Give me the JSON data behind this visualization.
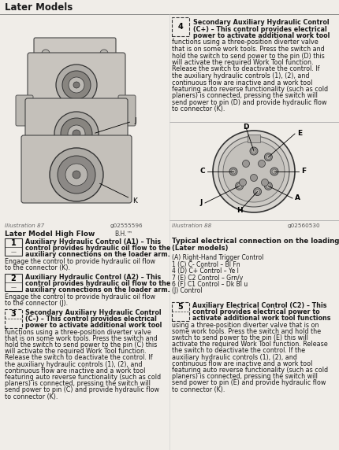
{
  "bg_color": "#f0ede8",
  "text_color": "#1a1a1a",
  "header_title": "Later Models",
  "left_illus_label": "Illustration 87",
  "left_illus_code": "g02555596",
  "left_illus_sub": "Later Model High Flow",
  "right_illus_label": "Illustration 88",
  "right_illus_code": "g02560530",
  "right_illus_sub1": "Typical electrical connection on the loading arm",
  "right_illus_sub2": "(Later models)",
  "legend_lines": [
    "(A) Right-Hand Trigger Control",
    "1 (C) C- Control – Bl Fn",
    "4 (D) C+ Control – Ye l",
    "7 (E) C2 Control – Grn/y",
    "6 (F) C1 Control – Dk Bl u",
    "(J) Control"
  ],
  "item4_bold": [
    "Secondary Auxiliary Hydraulic Control",
    "(C+) – This control provides electrical",
    "power to activate additional work tool"
  ],
  "item4_normal": [
    "functions using a three-position diverter valve",
    "that is on some work tools. Press the switch and",
    "hold the switch to send power to the pin (D) this",
    "will activate the required Work Tool function.",
    "Release the switch to deactivate the control. If",
    "the auxiliary hydraulic controls (1), (2), and",
    "continuous flow are inactive and a work tool",
    "featuring auto reverse functionality (such as cold",
    "planers) is connected, pressing the switch will",
    "send power to pin (D) and provide hydraulic flow",
    "to connector (K)."
  ],
  "item1_bold": [
    "Auxiliary Hydraulic Control (A1) – This",
    "control provides hydraulic oil flow to the",
    "auxiliary connections on the loader arm."
  ],
  "item1_normal": [
    "Engage the control to provide hydraulic oil flow",
    "to the connector (K)."
  ],
  "item2_bold": [
    "Auxiliary Hydraulic Control (A2) – This",
    "control provides hydraulic oil flow to the",
    "auxiliary connections on the loader arm."
  ],
  "item2_normal": [
    "Engage the control to provide hydraulic oil flow",
    "to the connector (J)."
  ],
  "item3_bold": [
    "Secondary Auxiliary Hydraulic Control",
    "(C–) – This control provides electrical",
    "power to activate additional work tool"
  ],
  "item3_normal": [
    "functions using a three-position diverter valve",
    "that is on some work tools. Press the switch and",
    "hold the switch to send power to the pin (C) this",
    "will activate the required Work Tool function.",
    "Release the switch to deactivate the control. If",
    "the auxiliary hydraulic controls (1), (2), and",
    "continuous flow are inactive and a work tool",
    "featuring auto reverse functionality (such as cold",
    "planers) is connected, pressing the switch will",
    "send power to pin (C) and provide hydraulic flow",
    "to connector (K)."
  ],
  "item5_bold": [
    "Auxiliary Electrical Control (C2) – This",
    "control provides electrical power to",
    "activate additional work tool functions"
  ],
  "item5_normal": [
    "using a three-position diverter valve that is on",
    "some work tools. Press the switch and hold the",
    "switch to send power to the pin (E) this will",
    "activate the required Work Tool function. Release",
    "the switch to deactivate the control. If the",
    "auxiliary hydraulic controls (1), (2), and",
    "continuous flow are inactive and a work tool",
    "featuring auto reverse functionality (such as cold",
    "planers) is connected, pressing the switch will",
    "send power to pin (E) and provide hydraulic flow",
    "to connector (K)."
  ]
}
